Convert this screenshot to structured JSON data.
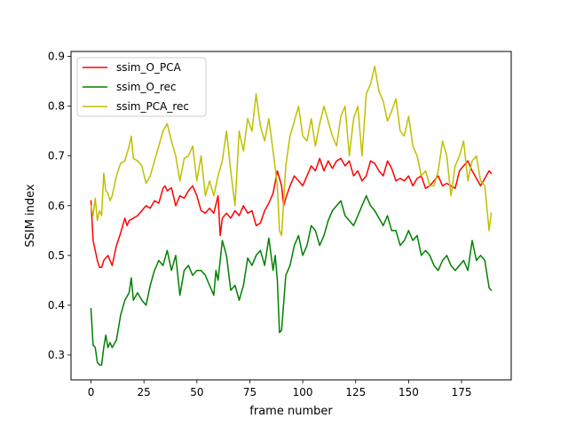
{
  "chart_data": {
    "type": "line",
    "xlabel": "frame number",
    "ylabel": "SSIM index",
    "xlim": [
      -9.45,
      198.45
    ],
    "ylim": [
      0.25,
      0.91
    ],
    "xticks": [
      0,
      25,
      50,
      75,
      100,
      125,
      150,
      175
    ],
    "xtick_labels": [
      "0",
      "25",
      "50",
      "75",
      "100",
      "125",
      "150",
      "175"
    ],
    "yticks": [
      0.3,
      0.4,
      0.5,
      0.6,
      0.7,
      0.8,
      0.9
    ],
    "ytick_labels": [
      "0.3",
      "0.4",
      "0.5",
      "0.6",
      "0.7",
      "0.8",
      "0.9"
    ],
    "grid": false,
    "legend_position": "upper-left",
    "series": [
      {
        "name": "ssim_O_PCA",
        "color": "#ff0000",
        "x": [
          0,
          1,
          2,
          3,
          4,
          5,
          6,
          7,
          8,
          9,
          10,
          12,
          14,
          16,
          17,
          18,
          20,
          22,
          24,
          26,
          28,
          30,
          32,
          34,
          35,
          36,
          38,
          40,
          42,
          44,
          46,
          48,
          50,
          52,
          54,
          56,
          58,
          60,
          61,
          62,
          64,
          66,
          68,
          70,
          72,
          74,
          76,
          78,
          80,
          82,
          84,
          86,
          88,
          90,
          91,
          92,
          94,
          96,
          98,
          100,
          102,
          104,
          106,
          108,
          110,
          112,
          114,
          116,
          118,
          120,
          122,
          124,
          126,
          128,
          130,
          132,
          134,
          136,
          138,
          140,
          142,
          144,
          146,
          148,
          150,
          152,
          154,
          156,
          158,
          160,
          162,
          164,
          166,
          168,
          170,
          172,
          174,
          176,
          178,
          180,
          182,
          184,
          186,
          188,
          189
        ],
        "y": [
          0.61,
          0.53,
          0.51,
          0.49,
          0.476,
          0.476,
          0.49,
          0.495,
          0.5,
          0.49,
          0.48,
          0.52,
          0.545,
          0.575,
          0.56,
          0.57,
          0.575,
          0.58,
          0.59,
          0.6,
          0.595,
          0.61,
          0.605,
          0.635,
          0.64,
          0.63,
          0.636,
          0.6,
          0.62,
          0.615,
          0.63,
          0.64,
          0.62,
          0.59,
          0.585,
          0.595,
          0.585,
          0.62,
          0.54,
          0.575,
          0.585,
          0.575,
          0.59,
          0.58,
          0.6,
          0.585,
          0.59,
          0.56,
          0.565,
          0.59,
          0.605,
          0.625,
          0.67,
          0.64,
          0.6,
          0.615,
          0.64,
          0.66,
          0.65,
          0.64,
          0.66,
          0.68,
          0.67,
          0.695,
          0.67,
          0.69,
          0.675,
          0.69,
          0.695,
          0.68,
          0.69,
          0.66,
          0.67,
          0.65,
          0.66,
          0.69,
          0.685,
          0.67,
          0.66,
          0.69,
          0.675,
          0.65,
          0.655,
          0.65,
          0.66,
          0.64,
          0.655,
          0.66,
          0.635,
          0.64,
          0.65,
          0.66,
          0.64,
          0.645,
          0.64,
          0.635,
          0.67,
          0.68,
          0.69,
          0.67,
          0.655,
          0.64,
          0.655,
          0.67,
          0.665
        ]
      },
      {
        "name": "ssim_O_rec",
        "color": "#008000",
        "x": [
          0,
          1,
          2,
          3,
          4,
          5,
          6,
          7,
          8,
          9,
          10,
          12,
          14,
          16,
          18,
          19,
          20,
          22,
          24,
          26,
          28,
          30,
          32,
          34,
          36,
          38,
          40,
          42,
          44,
          46,
          48,
          50,
          52,
          54,
          56,
          58,
          59,
          60,
          62,
          64,
          66,
          68,
          70,
          72,
          74,
          76,
          78,
          80,
          82,
          84,
          86,
          87,
          88,
          89,
          90,
          92,
          94,
          96,
          98,
          100,
          102,
          104,
          106,
          108,
          110,
          112,
          114,
          116,
          118,
          120,
          122,
          124,
          126,
          128,
          130,
          132,
          134,
          136,
          138,
          140,
          142,
          144,
          146,
          148,
          150,
          152,
          154,
          156,
          158,
          160,
          162,
          164,
          166,
          168,
          170,
          172,
          174,
          176,
          178,
          180,
          182,
          184,
          186,
          188,
          189
        ],
        "y": [
          0.393,
          0.32,
          0.315,
          0.285,
          0.28,
          0.28,
          0.315,
          0.34,
          0.315,
          0.325,
          0.315,
          0.33,
          0.38,
          0.41,
          0.425,
          0.455,
          0.41,
          0.425,
          0.41,
          0.4,
          0.44,
          0.47,
          0.49,
          0.48,
          0.51,
          0.47,
          0.5,
          0.42,
          0.47,
          0.48,
          0.46,
          0.47,
          0.47,
          0.46,
          0.44,
          0.42,
          0.47,
          0.45,
          0.53,
          0.5,
          0.43,
          0.44,
          0.41,
          0.44,
          0.495,
          0.48,
          0.5,
          0.51,
          0.48,
          0.535,
          0.47,
          0.5,
          0.45,
          0.345,
          0.35,
          0.46,
          0.48,
          0.52,
          0.54,
          0.5,
          0.52,
          0.56,
          0.55,
          0.52,
          0.54,
          0.57,
          0.59,
          0.6,
          0.61,
          0.58,
          0.57,
          0.56,
          0.58,
          0.6,
          0.62,
          0.6,
          0.59,
          0.575,
          0.56,
          0.58,
          0.55,
          0.55,
          0.52,
          0.53,
          0.55,
          0.53,
          0.54,
          0.5,
          0.51,
          0.5,
          0.48,
          0.47,
          0.49,
          0.5,
          0.48,
          0.47,
          0.48,
          0.49,
          0.47,
          0.53,
          0.49,
          0.5,
          0.49,
          0.435,
          0.43
        ]
      },
      {
        "name": "ssim_PCA_rec",
        "color": "#bfbf00",
        "x": [
          0,
          1,
          2,
          3,
          4,
          5,
          6,
          7,
          8,
          9,
          10,
          12,
          14,
          16,
          18,
          19,
          20,
          22,
          24,
          26,
          28,
          30,
          32,
          34,
          36,
          38,
          40,
          42,
          44,
          46,
          48,
          50,
          52,
          54,
          56,
          58,
          60,
          62,
          64,
          66,
          68,
          70,
          72,
          74,
          76,
          78,
          80,
          82,
          84,
          86,
          88,
          89,
          90,
          92,
          94,
          96,
          98,
          100,
          102,
          104,
          106,
          108,
          110,
          112,
          114,
          116,
          118,
          120,
          122,
          124,
          126,
          128,
          130,
          132,
          134,
          136,
          138,
          140,
          142,
          144,
          146,
          148,
          150,
          152,
          154,
          156,
          158,
          160,
          162,
          164,
          166,
          168,
          170,
          172,
          174,
          176,
          178,
          180,
          182,
          184,
          186,
          188,
          189
        ],
        "y": [
          0.6,
          0.58,
          0.615,
          0.57,
          0.59,
          0.58,
          0.665,
          0.63,
          0.625,
          0.61,
          0.62,
          0.66,
          0.685,
          0.69,
          0.72,
          0.74,
          0.695,
          0.69,
          0.68,
          0.645,
          0.66,
          0.69,
          0.72,
          0.75,
          0.765,
          0.73,
          0.7,
          0.65,
          0.695,
          0.7,
          0.72,
          0.65,
          0.7,
          0.62,
          0.65,
          0.62,
          0.66,
          0.69,
          0.75,
          0.67,
          0.6,
          0.75,
          0.71,
          0.775,
          0.75,
          0.825,
          0.76,
          0.73,
          0.775,
          0.71,
          0.64,
          0.55,
          0.54,
          0.68,
          0.74,
          0.77,
          0.8,
          0.74,
          0.73,
          0.775,
          0.72,
          0.765,
          0.8,
          0.77,
          0.74,
          0.72,
          0.78,
          0.8,
          0.7,
          0.775,
          0.8,
          0.7,
          0.825,
          0.845,
          0.88,
          0.83,
          0.81,
          0.77,
          0.79,
          0.815,
          0.75,
          0.74,
          0.78,
          0.72,
          0.7,
          0.66,
          0.67,
          0.64,
          0.64,
          0.67,
          0.73,
          0.7,
          0.62,
          0.68,
          0.7,
          0.73,
          0.65,
          0.69,
          0.7,
          0.65,
          0.64,
          0.55,
          0.585
        ]
      }
    ]
  }
}
